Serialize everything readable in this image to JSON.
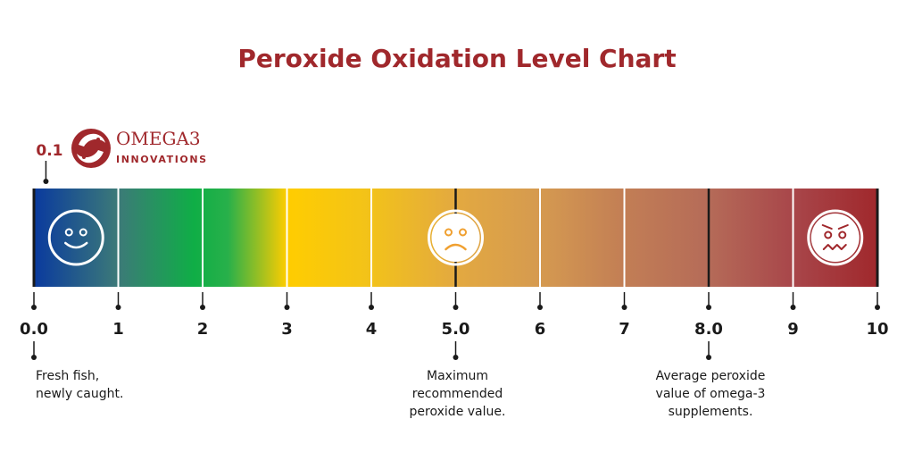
{
  "chart_data": {
    "type": "bar",
    "title": "Peroxide Oxidation Level Chart",
    "xlim": [
      0,
      10
    ],
    "ticks": [
      {
        "value": 0,
        "label": "0.0"
      },
      {
        "value": 1,
        "label": "1"
      },
      {
        "value": 2,
        "label": "2"
      },
      {
        "value": 3,
        "label": "3"
      },
      {
        "value": 4,
        "label": "4"
      },
      {
        "value": 5,
        "label": "5.0"
      },
      {
        "value": 6,
        "label": "6"
      },
      {
        "value": 7,
        "label": "7"
      },
      {
        "value": 8,
        "label": "8.0"
      },
      {
        "value": 9,
        "label": "9"
      },
      {
        "value": 10,
        "label": "10"
      }
    ],
    "marker": {
      "value": 0.1,
      "label": "0.1"
    },
    "annotations": [
      {
        "value": 0,
        "lines": [
          "Fresh fish,",
          "newly caught."
        ],
        "align": "left"
      },
      {
        "value": 5,
        "lines": [
          "Maximum",
          "recommended",
          "peroxide value."
        ],
        "align": "center"
      },
      {
        "value": 8,
        "lines": [
          "Average peroxide",
          "value of omega-3",
          "supplements."
        ],
        "align": "center"
      }
    ],
    "faces": [
      {
        "value": 0.5,
        "mood": "happy",
        "color": "#2244a0"
      },
      {
        "value": 5.0,
        "mood": "sad",
        "color": "#f0a030"
      },
      {
        "value": 9.5,
        "mood": "sick",
        "color": "#a0282c"
      }
    ],
    "gradient_stops": [
      {
        "value": 0,
        "color": "#0a3a9e"
      },
      {
        "value": 1.0,
        "color": "#3c7a78"
      },
      {
        "value": 1.9,
        "color": "#0fae46"
      },
      {
        "value": 2.3,
        "color": "#28b04a"
      },
      {
        "value": 3.0,
        "color": "#ffcd00"
      },
      {
        "value": 4.0,
        "color": "#f2c21a"
      },
      {
        "value": 5.0,
        "color": "#e3a940"
      },
      {
        "value": 6.0,
        "color": "#d59a50"
      },
      {
        "value": 7.0,
        "color": "#c27e55"
      },
      {
        "value": 8.0,
        "color": "#b56b58"
      },
      {
        "value": 9.0,
        "color": "#a8464a"
      },
      {
        "value": 10.0,
        "color": "#a0282c"
      }
    ]
  },
  "brand": {
    "name": "OMEGA3",
    "sub": "INNOVATIONS",
    "color": "#a0282c"
  },
  "colors": {
    "title": "#a0282c",
    "tick_line": "#1a1a1a",
    "grid_line": "#ffffff"
  }
}
